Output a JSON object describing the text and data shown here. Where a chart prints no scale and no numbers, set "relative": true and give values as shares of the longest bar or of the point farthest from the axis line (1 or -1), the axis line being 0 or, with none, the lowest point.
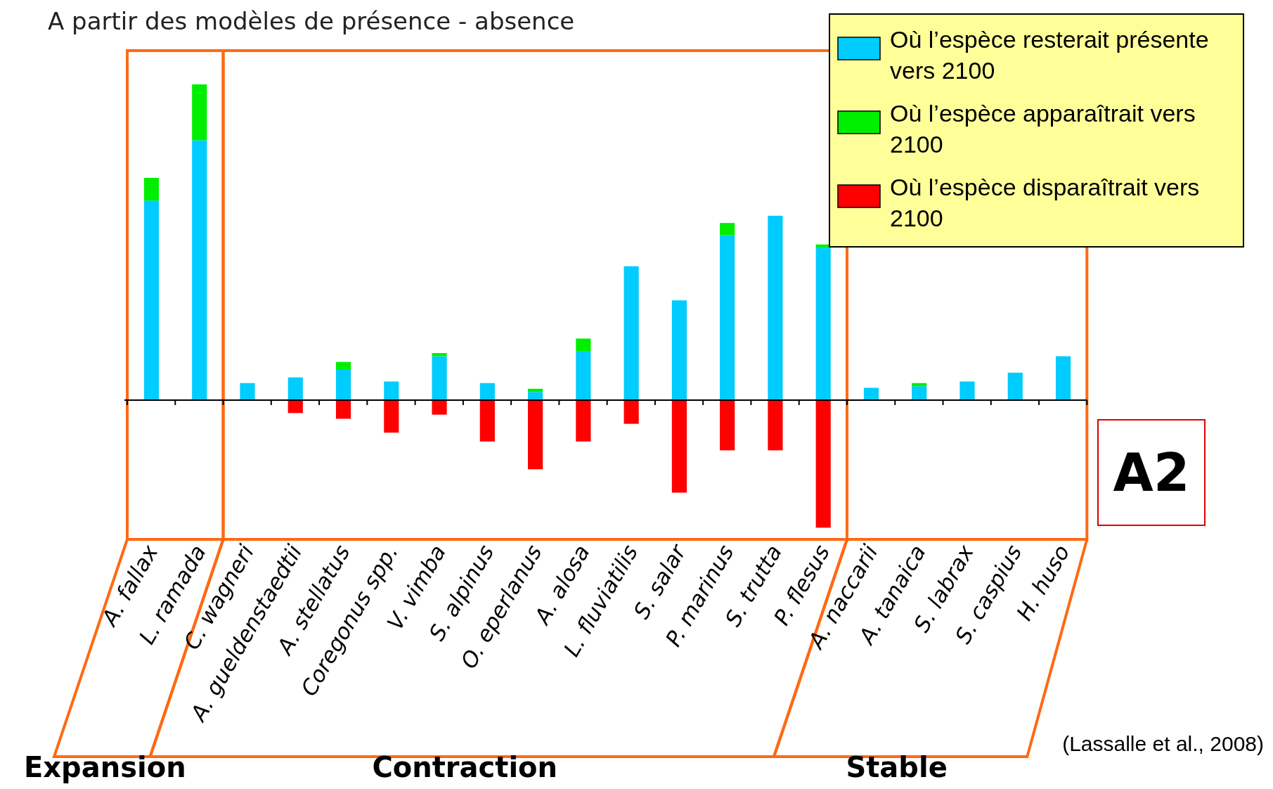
{
  "chart_data": {
    "type": "bar",
    "title": "A partir des modèles de présence - absence",
    "relative": true,
    "stacked": true,
    "legend": "top right",
    "categories": [
      "A. fallax",
      "L. ramada",
      "C. wagneri",
      "A. gueldenstaedtii",
      "A. stellatus",
      "Coregonus spp.",
      "V. vimba",
      "S. alpinus",
      "O. eperlanus",
      "A. alosa",
      "L. fluviatilis",
      "S. salar",
      "P. marinus",
      "S. trutta",
      "P. flesus",
      "A. naccarii",
      "A. tanaica",
      "S. labrax",
      "S. caspius",
      "H. huso"
    ],
    "series": [
      {
        "name": "Où l’espèce resterait présente vers 2100",
        "color": "#00ccff",
        "values": [
          0.632,
          0.823,
          0.054,
          0.072,
          0.098,
          0.059,
          0.139,
          0.054,
          0.026,
          0.154,
          0.424,
          0.316,
          0.522,
          0.584,
          0.483,
          0.039,
          0.044,
          0.059,
          0.087,
          0.139
        ]
      },
      {
        "name": "Où l’espèce apparaîtrait vers 2100",
        "color": "#00ee00",
        "values": [
          0.072,
          0.177,
          null,
          null,
          0.023,
          null,
          0.01,
          null,
          0.01,
          0.041,
          null,
          null,
          0.039,
          null,
          0.01,
          null,
          0.01,
          null,
          null,
          null
        ]
      },
      {
        "name": "Où l’espèce disparaîtrait vers 2100",
        "color": "#ff0000",
        "values": [
          null,
          null,
          null,
          -0.041,
          -0.059,
          -0.103,
          -0.046,
          -0.131,
          -0.219,
          -0.131,
          -0.075,
          -0.293,
          -0.159,
          -0.159,
          -0.404,
          null,
          null,
          null,
          null,
          null
        ]
      }
    ],
    "annotations": [
      "Expansion",
      "Contraction",
      "Stable",
      "A2",
      "(Lassalle et al., 2008)"
    ]
  }
}
